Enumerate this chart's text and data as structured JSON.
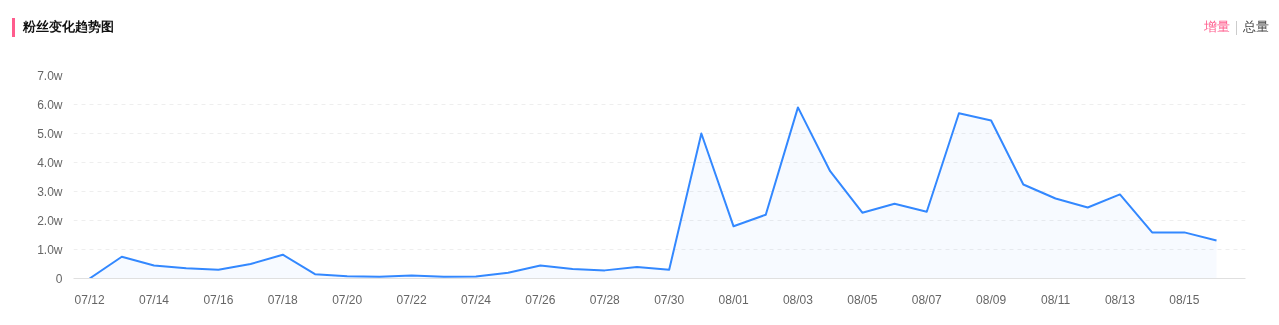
{
  "chart_data": {
    "type": "area",
    "title": "粉丝变化趋势图",
    "annotations": [
      "增量",
      "总量"
    ],
    "categories": [
      "07/12",
      null,
      "07/14",
      null,
      "07/16",
      null,
      "07/18",
      null,
      "07/20",
      null,
      "07/22",
      null,
      "07/24",
      null,
      "07/26",
      null,
      "07/28",
      null,
      "07/30",
      null,
      "08/01",
      null,
      "08/03",
      null,
      "08/05",
      null,
      "08/07",
      null,
      "08/09",
      null,
      "08/11",
      null,
      "08/13",
      null,
      "08/15",
      null
    ],
    "series": [
      {
        "color": "#3388ff",
        "values": [
          0,
          0.75,
          0.45,
          0.35,
          0.3,
          0.5,
          0.82,
          0.15,
          0.08,
          0.06,
          0.1,
          0.06,
          0.07,
          0.2,
          0.45,
          0.33,
          0.28,
          0.4,
          0.3,
          5.0,
          1.8,
          2.2,
          5.9,
          3.7,
          2.27,
          2.58,
          2.3,
          5.7,
          5.45,
          3.24,
          2.76,
          2.45,
          2.9,
          1.59,
          1.59,
          1.31
        ]
      }
    ],
    "ylim": [
      0,
      7
    ],
    "yticks": [
      {
        "value": 0,
        "label": "0"
      },
      {
        "value": 1,
        "label": "1.0w"
      },
      {
        "value": 2,
        "label": "2.0w"
      },
      {
        "value": 3,
        "label": "3.0w"
      },
      {
        "value": 4,
        "label": "4.0w"
      },
      {
        "value": 5,
        "label": "5.0w"
      },
      {
        "value": 6,
        "label": "6.0w"
      },
      {
        "value": 7,
        "label": "7.0w"
      }
    ],
    "grid": "y"
  }
}
